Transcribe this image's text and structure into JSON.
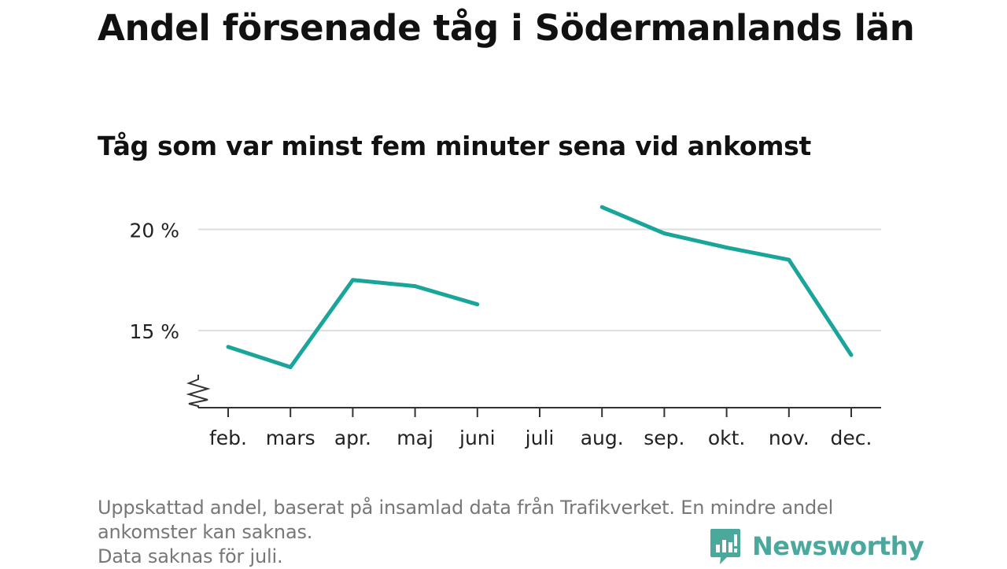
{
  "title": "Andel försenade tåg i Södermanlands län",
  "subtitle": "Tåg som var minst fem minuter sena vid ankomst",
  "notes": [
    "Uppskattad andel, baserat på insamlad data från Trafikverket. En mindre andel",
    "ankomster kan saknas.",
    "Data saknas för juli."
  ],
  "brand": {
    "name": "Newsworthy",
    "logo_icon": "bar-chart-speech-bubble-icon"
  },
  "colors": {
    "line": "#1aa59a",
    "grid": "#dddddd",
    "axis": "#333333",
    "brand": "#4aa89d"
  },
  "chart_data": {
    "type": "line",
    "categories": [
      "feb.",
      "mars",
      "apr.",
      "maj",
      "juni",
      "juli",
      "aug.",
      "sep.",
      "okt.",
      "nov.",
      "dec."
    ],
    "series": [
      {
        "values": [
          14.2,
          13.2,
          17.5,
          17.2,
          16.3,
          null,
          21.1,
          19.8,
          19.1,
          18.5,
          13.8
        ]
      }
    ],
    "yticks": [
      15,
      20
    ],
    "ytick_labels": [
      "15 %",
      "20 %"
    ],
    "ylim": [
      11.2,
      22
    ],
    "y_axis_break": true,
    "grid": true,
    "legend": "none",
    "xlabel": "",
    "ylabel": ""
  }
}
